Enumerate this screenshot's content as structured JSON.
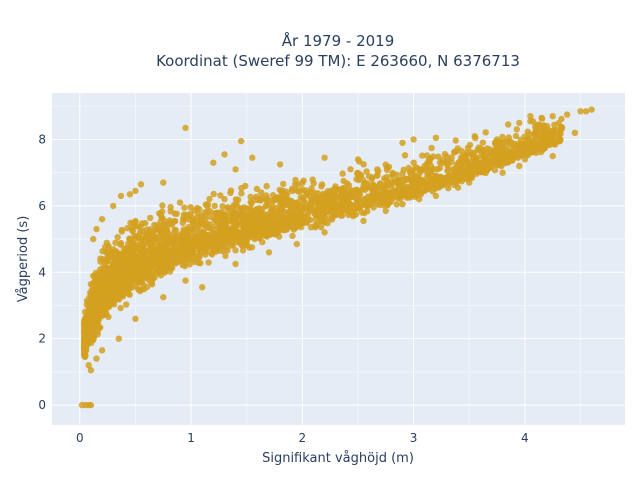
{
  "chart_data": {
    "type": "scatter",
    "title_line1": "År 1979 - 2019",
    "title_line2": "Koordinat (Sweref 99 TM): E 263660, N 6376713",
    "xlabel": "Signifikant våghöjd (m)",
    "ylabel": "Vågperiod (s)",
    "xlim": [
      -0.25,
      4.9
    ],
    "ylim": [
      -0.6,
      9.4
    ],
    "x_ticks": [
      0,
      1,
      2,
      3,
      4
    ],
    "y_ticks": [
      0,
      2,
      4,
      6,
      8
    ],
    "x_tick_labels": [
      "0",
      "1",
      "2",
      "3",
      "4"
    ],
    "y_tick_labels": [
      "0",
      "2",
      "4",
      "6",
      "8"
    ],
    "grid": true,
    "legend": "none",
    "marker_color": "#d4a020",
    "background_color": "#e5ecf6",
    "trend": {
      "x": [
        0.05,
        0.1,
        0.2,
        0.3,
        0.5,
        0.7,
        1.0,
        1.5,
        2.0,
        2.5,
        3.0,
        3.5,
        4.0,
        4.5
      ],
      "y_mid": [
        2.0,
        2.6,
        3.3,
        3.7,
        4.2,
        4.55,
        4.9,
        5.35,
        5.75,
        6.15,
        6.6,
        7.1,
        7.7,
        8.4
      ],
      "y_low": [
        1.2,
        1.6,
        2.1,
        2.5,
        3.0,
        3.4,
        3.9,
        4.6,
        5.1,
        5.6,
        6.1,
        6.7,
        7.3,
        8.0
      ],
      "y_high": [
        3.0,
        4.0,
        5.2,
        5.6,
        6.0,
        6.2,
        6.4,
        6.8,
        7.1,
        7.5,
        7.9,
        8.3,
        8.7,
        9.0
      ]
    },
    "points": [
      {
        "x": 0.02,
        "y": 0.0
      },
      {
        "x": 0.05,
        "y": 0.0
      },
      {
        "x": 0.08,
        "y": 0.0
      },
      {
        "x": 0.1,
        "y": 0.0
      },
      {
        "x": 0.95,
        "y": 8.35
      },
      {
        "x": 1.45,
        "y": 7.95
      },
      {
        "x": 4.6,
        "y": 8.9
      },
      {
        "x": 4.55,
        "y": 8.85
      },
      {
        "x": 4.5,
        "y": 8.85
      },
      {
        "x": 4.38,
        "y": 8.75
      },
      {
        "x": 4.25,
        "y": 8.7
      },
      {
        "x": 4.2,
        "y": 8.4
      },
      {
        "x": 4.15,
        "y": 8.65
      },
      {
        "x": 4.05,
        "y": 8.7
      },
      {
        "x": 3.95,
        "y": 8.5
      },
      {
        "x": 3.85,
        "y": 8.45
      },
      {
        "x": 4.05,
        "y": 8.55
      },
      {
        "x": 4.45,
        "y": 8.2
      },
      {
        "x": 4.25,
        "y": 7.5
      },
      {
        "x": 4.1,
        "y": 7.6
      },
      {
        "x": 3.95,
        "y": 7.2
      },
      {
        "x": 4.0,
        "y": 7.4
      },
      {
        "x": 3.8,
        "y": 7.0
      },
      {
        "x": 3.5,
        "y": 6.7
      },
      {
        "x": 3.4,
        "y": 6.55
      },
      {
        "x": 3.2,
        "y": 6.3
      },
      {
        "x": 3.05,
        "y": 6.2
      },
      {
        "x": 2.9,
        "y": 6.05
      },
      {
        "x": 2.75,
        "y": 5.85
      },
      {
        "x": 2.55,
        "y": 5.55
      },
      {
        "x": 2.2,
        "y": 5.2
      },
      {
        "x": 1.95,
        "y": 4.85
      },
      {
        "x": 1.7,
        "y": 4.6
      },
      {
        "x": 1.4,
        "y": 4.25
      },
      {
        "x": 1.1,
        "y": 3.55
      },
      {
        "x": 0.95,
        "y": 3.75
      },
      {
        "x": 0.75,
        "y": 3.25
      },
      {
        "x": 0.5,
        "y": 2.6
      },
      {
        "x": 0.35,
        "y": 2.0
      },
      {
        "x": 0.2,
        "y": 1.65
      },
      {
        "x": 0.15,
        "y": 1.4
      },
      {
        "x": 0.1,
        "y": 1.05
      },
      {
        "x": 0.08,
        "y": 1.2
      },
      {
        "x": 0.05,
        "y": 1.5
      },
      {
        "x": 0.12,
        "y": 5.0
      },
      {
        "x": 0.15,
        "y": 5.3
      },
      {
        "x": 0.2,
        "y": 5.6
      },
      {
        "x": 0.3,
        "y": 6.0
      },
      {
        "x": 0.37,
        "y": 6.3
      },
      {
        "x": 0.45,
        "y": 6.35
      },
      {
        "x": 0.55,
        "y": 6.65
      },
      {
        "x": 0.5,
        "y": 6.45
      },
      {
        "x": 0.75,
        "y": 6.7
      },
      {
        "x": 1.2,
        "y": 7.3
      },
      {
        "x": 1.3,
        "y": 7.55
      },
      {
        "x": 1.4,
        "y": 7.1
      },
      {
        "x": 1.55,
        "y": 7.45
      },
      {
        "x": 1.8,
        "y": 7.25
      },
      {
        "x": 2.2,
        "y": 7.45
      },
      {
        "x": 2.5,
        "y": 7.4
      },
      {
        "x": 2.9,
        "y": 7.9
      },
      {
        "x": 3.2,
        "y": 8.05
      },
      {
        "x": 3.55,
        "y": 8.1
      },
      {
        "x": 3.75,
        "y": 8.0
      },
      {
        "x": 3.0,
        "y": 8.0
      },
      {
        "x": 1.3,
        "y": 6.2
      },
      {
        "x": 1.15,
        "y": 6.05
      },
      {
        "x": 0.9,
        "y": 6.1
      }
    ]
  }
}
